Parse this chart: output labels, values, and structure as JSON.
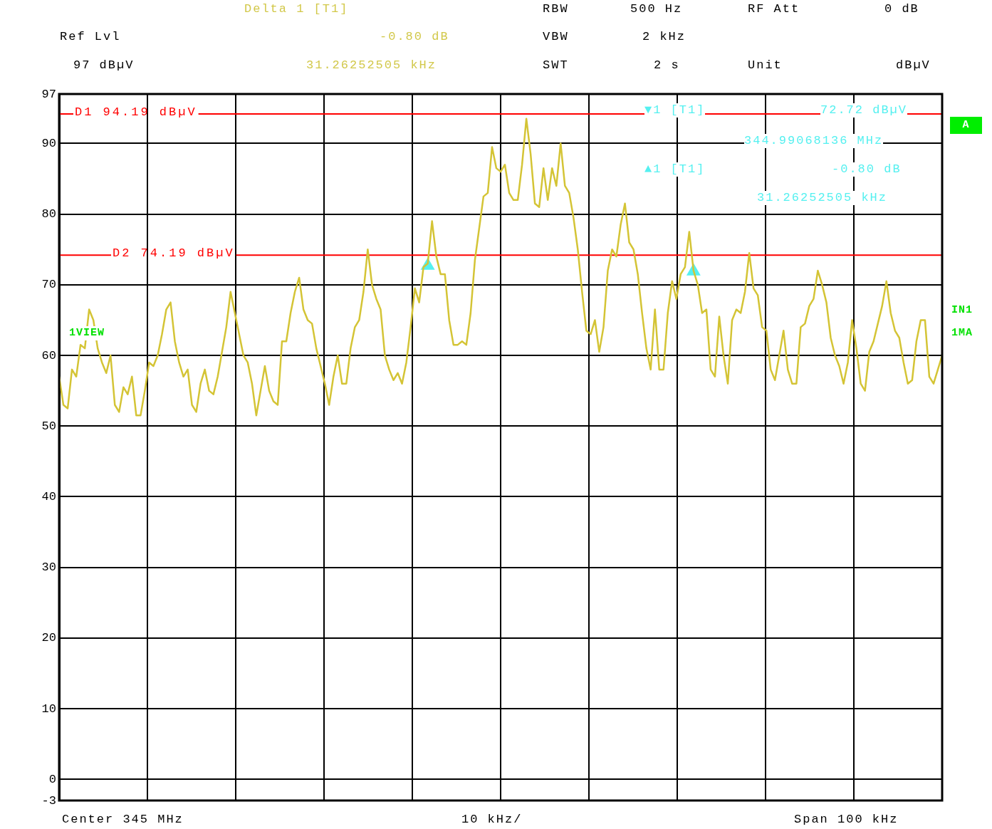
{
  "chart_data": {
    "type": "line",
    "categories": [
      null,
      null,
      null,
      null,
      null,
      null,
      null,
      null,
      null,
      null,
      null,
      null,
      null,
      null,
      null,
      null,
      null,
      null,
      null,
      null,
      null,
      null,
      null,
      null,
      null,
      null,
      null,
      null,
      null,
      null,
      null,
      null,
      null,
      null,
      null,
      null,
      null,
      null,
      null,
      null,
      null,
      null,
      null,
      null,
      null,
      null,
      null,
      null,
      null,
      null,
      null,
      null,
      null,
      null,
      null,
      null,
      null,
      null,
      null,
      null,
      null,
      null,
      null,
      null,
      null,
      null,
      null,
      null,
      null,
      null,
      null,
      null,
      null,
      null,
      null,
      null,
      null,
      null,
      null,
      null,
      null,
      null,
      null,
      null,
      null,
      null,
      null,
      null,
      null,
      null,
      null,
      null,
      null,
      null,
      null,
      null,
      null,
      null,
      null,
      null,
      null,
      null,
      null,
      null,
      null,
      null,
      null,
      null,
      null,
      null,
      null,
      null,
      null,
      null,
      null,
      null,
      null,
      null,
      null,
      null,
      null,
      null,
      null,
      null,
      null,
      null,
      null,
      null,
      null,
      null,
      null,
      null,
      null,
      null,
      null,
      null,
      null,
      null,
      null,
      null,
      null,
      null,
      null,
      null,
      null,
      null,
      null,
      null,
      null,
      null,
      null,
      null,
      null,
      null,
      null,
      null,
      null,
      null,
      null,
      null,
      null,
      null,
      null,
      null,
      null,
      null,
      null,
      null,
      null,
      null,
      null,
      null,
      null,
      null,
      null,
      null,
      null,
      null,
      null,
      null,
      null,
      null,
      null,
      null,
      null,
      null,
      null,
      null,
      null,
      null,
      null,
      null,
      null,
      null,
      null,
      null,
      null,
      null,
      null,
      null,
      null,
      null,
      null,
      null,
      null,
      null,
      null
    ],
    "series": [
      {
        "type": "line",
        "color": "#d4c435",
        "values": [
          57,
          53,
          52.5,
          58,
          57,
          61.5,
          61,
          66.5,
          65,
          61,
          59,
          57.5,
          60,
          53,
          52,
          55.5,
          54.5,
          57,
          51.5,
          51.5,
          55,
          59,
          58.5,
          60,
          63,
          66.5,
          67.5,
          62,
          59,
          57,
          58,
          53,
          52,
          56,
          58,
          55,
          54.5,
          57,
          60.5,
          64,
          69,
          66,
          63,
          60,
          59,
          56,
          51.5,
          55,
          58.5,
          55,
          53.5,
          53,
          62,
          62,
          66,
          69,
          71,
          66.5,
          65,
          64.5,
          61,
          58.5,
          56,
          53,
          57,
          60,
          56,
          56,
          61,
          64,
          65,
          69,
          75,
          70,
          68,
          66.5,
          60,
          58,
          56.5,
          57.5,
          56,
          59,
          64,
          69.5,
          67.5,
          72.5,
          73,
          79,
          74,
          71.5,
          71.5,
          65,
          61.5,
          61.5,
          62,
          61.5,
          66,
          73.5,
          78,
          82.5,
          83,
          89.5,
          86.5,
          86,
          87,
          83,
          82,
          82,
          87,
          93.5,
          88.5,
          81.5,
          81,
          86.5,
          82,
          86.5,
          84,
          90,
          84,
          83,
          79.5,
          75,
          69,
          63.5,
          63,
          65,
          60.5,
          64,
          72,
          75,
          74,
          78.5,
          81.5,
          76,
          75,
          71.5,
          66,
          61,
          58,
          66.5,
          58,
          58,
          66,
          70.5,
          68,
          71.5,
          72.5,
          77.5,
          72,
          70,
          66,
          66.5,
          58,
          57,
          65.5,
          60,
          56,
          65,
          66.5,
          66,
          69,
          74.5,
          69.5,
          68.5,
          64,
          63.5,
          58,
          56.5,
          60,
          63.5,
          58,
          56,
          56,
          64,
          64.5,
          67,
          68,
          72,
          70,
          67.5,
          62.5,
          60,
          58.5,
          56,
          59,
          65,
          61,
          56,
          55,
          60.5,
          62,
          64.5,
          67,
          70.5,
          66,
          63.5,
          62.5,
          59,
          56,
          56.5,
          62,
          65,
          65,
          57,
          56,
          58,
          60
        ]
      },
      {
        "type": "scatter",
        "color": "#55f0f0",
        "marker": "triangle",
        "values": [
          null,
          null,
          null,
          null,
          null,
          null,
          null,
          null,
          null,
          null,
          null,
          null,
          null,
          null,
          null,
          null,
          null,
          null,
          null,
          null,
          null,
          null,
          null,
          null,
          null,
          null,
          null,
          null,
          null,
          null,
          null,
          null,
          null,
          null,
          null,
          null,
          null,
          null,
          null,
          null,
          null,
          null,
          null,
          null,
          null,
          null,
          null,
          null,
          null,
          null,
          null,
          null,
          null,
          null,
          null,
          null,
          null,
          null,
          null,
          null,
          null,
          null,
          null,
          null,
          null,
          null,
          null,
          null,
          null,
          null,
          null,
          null,
          null,
          null,
          null,
          null,
          null,
          null,
          null,
          null,
          null,
          null,
          null,
          null,
          null,
          null,
          72.7,
          null,
          null,
          null,
          null,
          null,
          null,
          null,
          null,
          null,
          null,
          null,
          null,
          null,
          null,
          null,
          null,
          null,
          null,
          null,
          null,
          null,
          null,
          null,
          null,
          null,
          null,
          null,
          null,
          null,
          null,
          null,
          null,
          null,
          null,
          null,
          null,
          null,
          null,
          null,
          null,
          null,
          null,
          null,
          null,
          null,
          null,
          null,
          null,
          null,
          null,
          null,
          null,
          null,
          null,
          null,
          null,
          null,
          null,
          null,
          null,
          null,
          71.9,
          null,
          null,
          null,
          null,
          null,
          null,
          null,
          null,
          null,
          null,
          null,
          null,
          null,
          null,
          null,
          null,
          null,
          null,
          null,
          null,
          null,
          null,
          null,
          null,
          null,
          null,
          null,
          null,
          null,
          null,
          null,
          null,
          null,
          null,
          null,
          null,
          null,
          null,
          null,
          null,
          null,
          null,
          null,
          null,
          null,
          null,
          null,
          null,
          null,
          null,
          null,
          null,
          null,
          null,
          null,
          null,
          null,
          null
        ]
      }
    ],
    "ylim": [
      -3,
      97
    ],
    "yticks": [
      -3,
      0,
      10,
      20,
      30,
      40,
      50,
      60,
      70,
      80,
      90,
      97
    ],
    "grid": true,
    "ref_lines": [
      {
        "axis": "y",
        "value": 94.19,
        "label": "D1 94.19 dBµV",
        "color": "#ff0000"
      },
      {
        "axis": "y",
        "value": 74.19,
        "label": "D2 74.19 dBµV",
        "color": "#ff0000"
      }
    ],
    "annotations": [
      "Delta 1 [T1]",
      "-0.80 dB",
      "31.26252505 kHz",
      "Ref Lvl",
      "97 dBµV",
      "RBW",
      "500 Hz",
      "VBW",
      "2 kHz",
      "SWT",
      "2 s",
      "RF Att",
      "0 dB",
      "Unit",
      "dBµV",
      "▼1 [T1]",
      "72.72 dBµV",
      "344.99068136 MHz",
      "▲1 [T1]",
      "-0.80 dB",
      "31.26252505 kHz",
      "A",
      "IN1",
      "1MA",
      "1VIEW",
      "Center 345 MHz",
      "10 kHz/",
      "Span 100 kHz"
    ]
  }
}
